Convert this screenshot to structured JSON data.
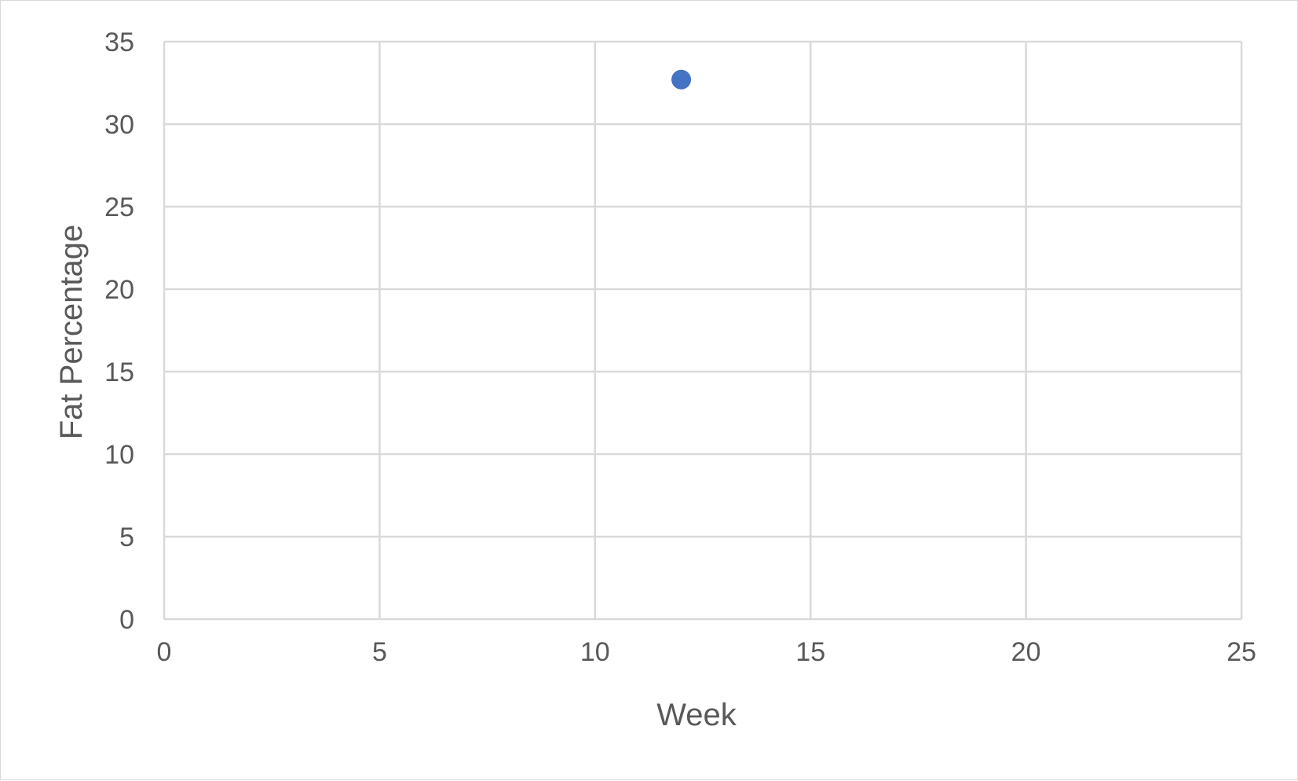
{
  "chart_data": {
    "type": "scatter",
    "title": "",
    "xlabel": "Week",
    "ylabel": "Fat Percentage",
    "xlim": [
      0,
      25
    ],
    "ylim": [
      0,
      35
    ],
    "x_ticks": [
      "0",
      "5",
      "10",
      "15",
      "20",
      "25"
    ],
    "y_ticks": [
      "0",
      "5",
      "10",
      "15",
      "20",
      "25",
      "30",
      "35"
    ],
    "grid": true,
    "legend": "none",
    "series": [
      {
        "color": "#4472C4",
        "points": [
          {
            "x": 12,
            "y": 32.7
          }
        ]
      }
    ]
  },
  "colors": {
    "gridline": "#d9d9d9",
    "axis_text": "#595959",
    "marker": "#4472C4"
  }
}
